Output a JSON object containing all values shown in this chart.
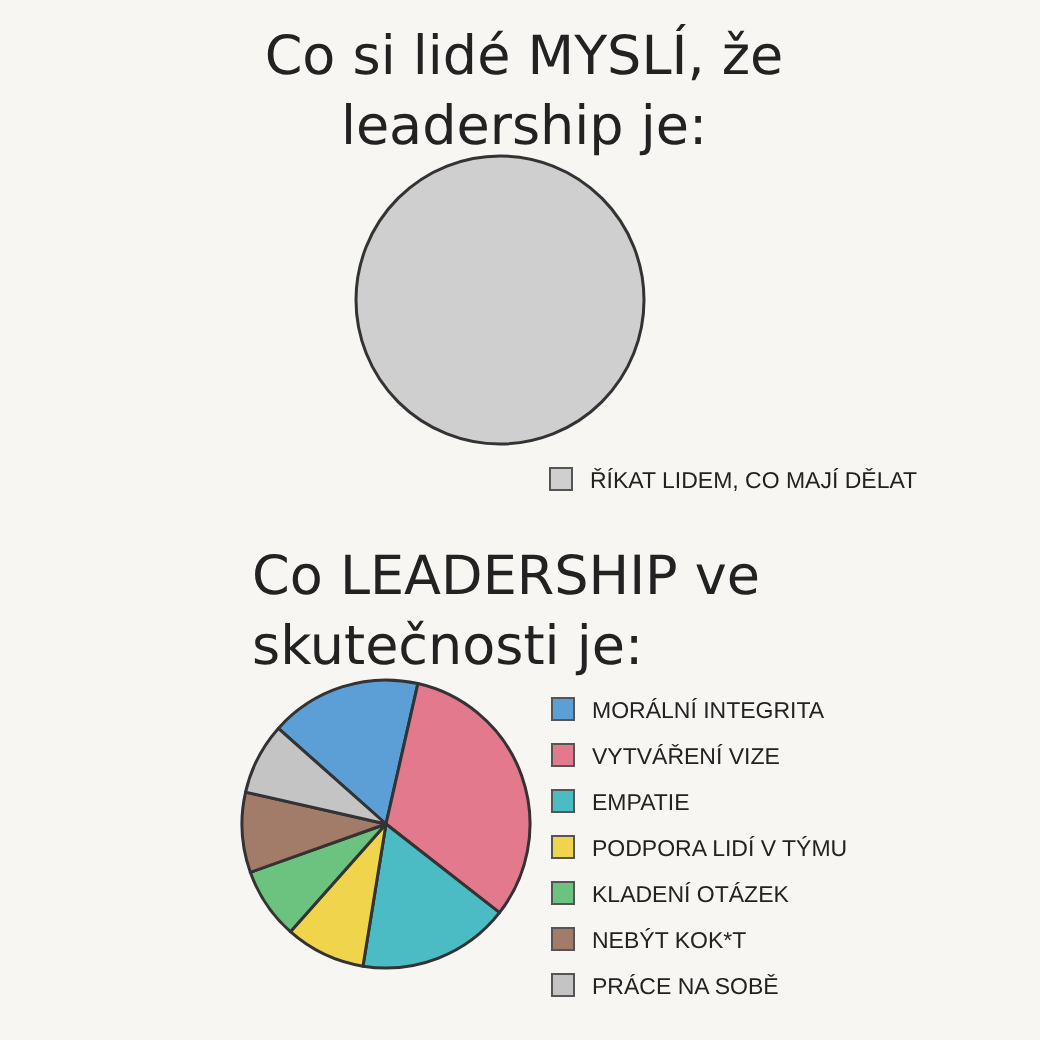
{
  "chart_data": [
    {
      "type": "pie",
      "title": "Co si lidé MYSLÍ, že\nleadership je:",
      "categories": [
        "ŘÍKAT LIDEM, CO MAJÍ DĚLAT"
      ],
      "values": [
        100
      ],
      "colors": [
        "#cfcfcf"
      ],
      "legend": "bottom right"
    },
    {
      "type": "pie",
      "title": "Co LEADERSHIP ve\nskutečnosti je:",
      "categories": [
        "MORÁLNÍ INTEGRITA",
        "VYTVÁŘENÍ VIZE",
        "EMPATIE",
        "PODPORA LIDÍ V TÝMU",
        "KLADENÍ OTÁZEK",
        "NEBÝT KOK*T",
        "PRÁCE NA SOBĚ"
      ],
      "values": [
        17,
        32,
        17,
        9,
        8,
        9,
        8
      ],
      "colors": [
        "#5b9fd6",
        "#e2798c",
        "#4cbcc4",
        "#f0d44c",
        "#6cc380",
        "#a37b69",
        "#c4c4c4"
      ],
      "legend": "right"
    }
  ]
}
